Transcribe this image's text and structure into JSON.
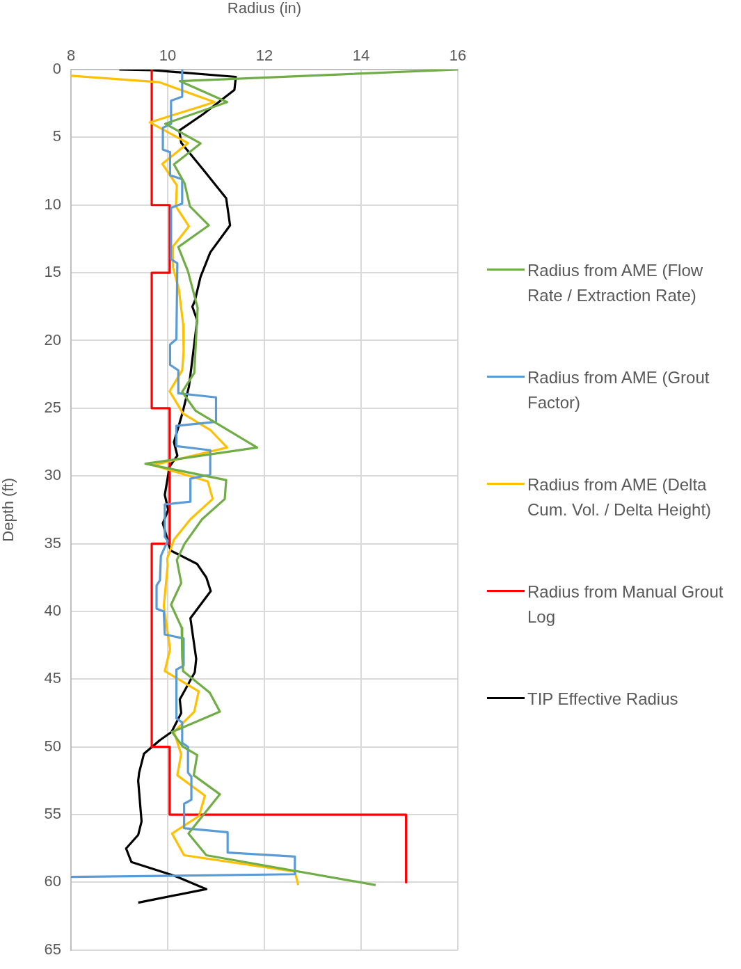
{
  "chart_data": {
    "type": "line",
    "xlabel": "Radius (in)",
    "ylabel": "Depth (ft)",
    "xlim": [
      8,
      16
    ],
    "xticks": [
      8,
      10,
      12,
      14,
      16
    ],
    "ylim": [
      65,
      0
    ],
    "yticks": [
      0,
      5,
      10,
      15,
      20,
      25,
      30,
      35,
      40,
      45,
      50,
      55,
      60,
      65
    ],
    "grid": true,
    "legend": "right",
    "marker": "none",
    "line_style": "solid",
    "series": [
      {
        "name": "Radius from AME (Flow Rate / Extraction Rate)",
        "color": "#70ad47",
        "x": [
          16,
          10.25,
          11.23,
          9.95,
          10.68,
          10.13,
          10.35,
          10.46,
          10.85,
          10.22,
          10.42,
          10.62,
          10.55,
          10.3,
          10.58,
          11.85,
          9.54,
          11.21,
          11.18,
          10.71,
          10.35,
          10.19,
          10.28,
          10.07,
          10.29,
          10.3,
          10.32,
          10.87,
          11.08,
          10.09,
          10.32,
          10.61,
          10.54,
          11.08,
          10.43,
          10.8,
          14.3
        ],
        "values": [
          0,
          0.85,
          2.4,
          4,
          5.45,
          7,
          8.4,
          10.1,
          11.5,
          13.1,
          14.9,
          17.6,
          22.4,
          23.8,
          25.2,
          27.9,
          29.1,
          30.3,
          31.7,
          33.2,
          35,
          36.2,
          37.9,
          39.5,
          41.2,
          43.4,
          44.4,
          46,
          47.4,
          48.9,
          50,
          50.6,
          52.1,
          53.5,
          56.4,
          58,
          60.2
        ]
      },
      {
        "name": "Radius from AME (Grout Factor)",
        "color": "#5b9bd5",
        "x": [
          10.3,
          10.3,
          10.07,
          10.07,
          9.9,
          9.9,
          10.05,
          10.05,
          10.3,
          10.3,
          10.07,
          10.07,
          10.2,
          10.18,
          10.05,
          10.05,
          10.22,
          10.22,
          11,
          11,
          10.18,
          10.18,
          10.88,
          10.88,
          10.47,
          10.47,
          9.94,
          9.94,
          10,
          9.86,
          9.84,
          9.77,
          9.77,
          9.92,
          9.94,
          10.33,
          10.33,
          10.18,
          10.18,
          10.3,
          10.3,
          10.42,
          10.42,
          10.49,
          10.49,
          10.34,
          10.34,
          11.24,
          11.24,
          12.63,
          12.63,
          8
        ],
        "values": [
          0,
          2,
          2.3,
          4,
          4.3,
          5.9,
          6.1,
          7.8,
          8.1,
          9.9,
          10.2,
          14,
          14.3,
          19.9,
          20.3,
          21.8,
          22.2,
          23.9,
          24.2,
          26,
          26.3,
          27.8,
          28.1,
          29.9,
          30.2,
          31.9,
          32.1,
          34.5,
          34.8,
          35.9,
          37.7,
          38.1,
          39.8,
          40,
          41.7,
          42,
          44,
          44.3,
          47.9,
          48.2,
          49.7,
          50,
          51.9,
          52.2,
          53.9,
          54.2,
          56,
          56.3,
          57.8,
          58.1,
          59.4,
          59.6
        ]
      },
      {
        "name": "Radius from AME (Delta Cum. Vol. / Delta Height)",
        "color": "#ffc000",
        "x": [
          8,
          9.82,
          10.97,
          9.63,
          10.42,
          9.89,
          10.19,
          10.17,
          10.44,
          10.11,
          10.11,
          10.23,
          10.32,
          10.33,
          10.3,
          10.04,
          10.32,
          10.88,
          11.23,
          9.7,
          10.83,
          10.93,
          10.47,
          10.13,
          9.99,
          10,
          9.92,
          10.05,
          9.94,
          10.64,
          10.55,
          10.13,
          10.28,
          10.26,
          10.2,
          10.77,
          10.65,
          10.09,
          10.34,
          12.63,
          12.7
        ],
        "values": [
          0.46,
          0.93,
          2.4,
          3.9,
          5.43,
          6.96,
          8.55,
          10.1,
          11.57,
          13.06,
          14.6,
          16.2,
          18.8,
          20.8,
          22.2,
          23.75,
          25.4,
          26.6,
          27.9,
          29.2,
          30.4,
          31.7,
          33.2,
          34.7,
          36.1,
          36.6,
          39.6,
          42.8,
          44.4,
          45.9,
          47.4,
          48.9,
          50.55,
          50.9,
          52.1,
          53.6,
          55.1,
          56.4,
          58,
          59.2,
          60.2
        ]
      },
      {
        "name": "Radius from Manual Grout Log",
        "color": "#ff0000",
        "x": [
          9.67,
          9.67,
          10.04,
          10.04,
          9.67,
          9.67,
          10.04,
          10.04,
          9.67,
          9.67,
          10.04,
          10.04,
          14.93,
          14.93
        ],
        "values": [
          0,
          10,
          10,
          15,
          15,
          25,
          25,
          35,
          35,
          50,
          50,
          55,
          55,
          60
        ]
      },
      {
        "name": "TIP Effective Radius",
        "color": "#000000",
        "x": [
          9,
          9.7,
          11.41,
          11.38,
          10.73,
          10.24,
          10.28,
          10.76,
          11.21,
          11.29,
          10.88,
          10.68,
          10.56,
          10.51,
          10.61,
          10.51,
          10.44,
          10.31,
          10.13,
          10.2,
          10.04,
          9.94,
          10.01,
          9.9,
          10.06,
          10.61,
          10.8,
          10.89,
          10.47,
          10.59,
          10.56,
          10.25,
          10.28,
          10.08,
          9.84,
          9.51,
          9.41,
          9.39,
          9.46,
          9.39,
          9.14,
          9.25,
          10.13,
          10.8,
          9.39
        ],
        "values": [
          0,
          0.05,
          0.54,
          1.5,
          3.3,
          4.5,
          5.4,
          7.5,
          9.5,
          11.5,
          13.5,
          15.3,
          17.1,
          17.5,
          18.5,
          21.4,
          23.4,
          25.3,
          27.5,
          28.5,
          29.3,
          31.4,
          32.5,
          33.5,
          35.5,
          36.5,
          37.5,
          38.5,
          40.5,
          43.5,
          44.5,
          46.5,
          47.5,
          48.9,
          49.5,
          50.5,
          51.9,
          52.5,
          55.5,
          56.5,
          57.5,
          58.5,
          59.5,
          60.5,
          61.5
        ]
      }
    ]
  }
}
